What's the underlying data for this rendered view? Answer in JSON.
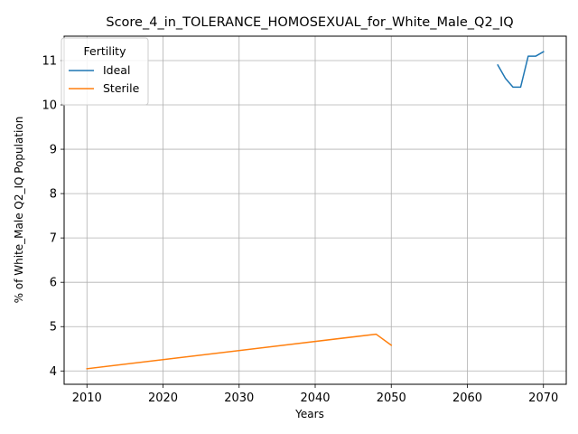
{
  "chart_data": {
    "type": "line",
    "title": "Score_4_in_TOLERANCE_HOMOSEXUAL_for_White_Male_Q2_IQ",
    "xlabel": "Years",
    "ylabel": "% of White_Male Q2_IQ Population",
    "xlim": [
      2007,
      2073
    ],
    "ylim": [
      3.7,
      11.55
    ],
    "xticks": [
      2010,
      2020,
      2030,
      2040,
      2050,
      2060,
      2070
    ],
    "yticks": [
      4,
      5,
      6,
      7,
      8,
      9,
      10,
      11
    ],
    "grid": true,
    "legend": {
      "title": "Fertility",
      "location": "top-left"
    },
    "series": [
      {
        "name": "Ideal",
        "color": "#1f77b4",
        "x": [
          2064,
          2065,
          2066,
          2067,
          2068,
          2069,
          2070
        ],
        "y": [
          10.9,
          10.6,
          10.4,
          10.4,
          11.1,
          11.1,
          11.2
        ]
      },
      {
        "name": "Sterile",
        "color": "#ff7f0e",
        "x": [
          2010,
          2048,
          2050
        ],
        "y": [
          4.05,
          4.83,
          4.58
        ]
      }
    ]
  }
}
